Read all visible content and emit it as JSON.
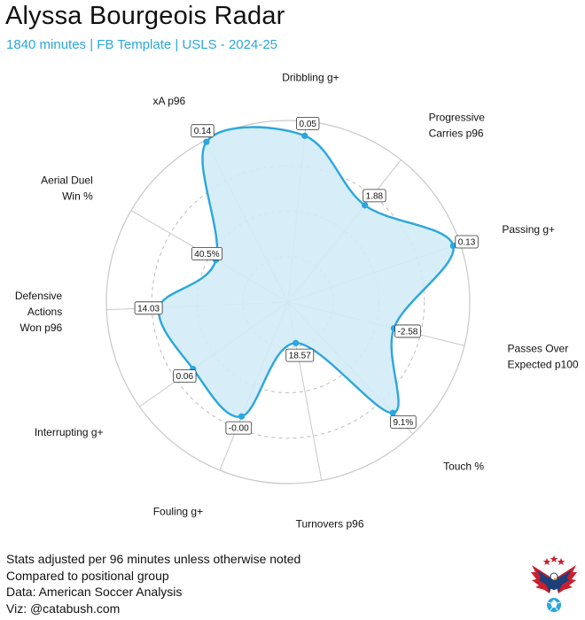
{
  "header": {
    "title": "Alyssa Bourgeois Radar",
    "subtitle": "1840 minutes | FB Template | USLS - 2024-25"
  },
  "footer": {
    "line1": "Stats adjusted per 96 minutes unless otherwise noted",
    "line2": "Compared to positional group",
    "line3": "Data: American Soccer Analysis",
    "line4": "Viz: @catabush.com"
  },
  "colors": {
    "accent": "#2aa7dc",
    "fill": "#d3ebf7",
    "grid": "#cfcfcf"
  },
  "chart_data": {
    "type": "radar",
    "title": "Alyssa Bourgeois Radar",
    "subtitle": "1840 minutes | FB Template | USLS - 2024-25",
    "percentile_range": [
      0,
      100
    ],
    "grid_rings": [
      25,
      50,
      75,
      100
    ],
    "series": [
      {
        "axes": [
          {
            "label": [
              "Dribbling g+"
            ],
            "value_label": "0.05",
            "percentile": 92
          },
          {
            "label": [
              "Progressive",
              "Carries p96"
            ],
            "value_label": "1.88",
            "percentile": 68
          },
          {
            "label": [
              "Passing g+"
            ],
            "value_label": "0.13",
            "percentile": 96
          },
          {
            "label": [
              "Passes Over",
              "Expected p100"
            ],
            "value_label": "-2.58",
            "percentile": 60
          },
          {
            "label": [
              "Touch %"
            ],
            "value_label": "9.1%",
            "percentile": 84
          },
          {
            "label": [
              "Turnovers p96"
            ],
            "value_label": "18.57",
            "percentile": 23
          },
          {
            "label": [
              "Fouling g+"
            ],
            "value_label": "-0.00",
            "percentile": 68
          },
          {
            "label": [
              "Interrupting g+"
            ],
            "value_label": "0.06",
            "percentile": 64
          },
          {
            "label": [
              "Defensive",
              "Actions",
              "Won p96"
            ],
            "value_label": "14.03",
            "percentile": 71
          },
          {
            "label": [
              "Aerial Duel",
              "Win %"
            ],
            "value_label": "40.5%",
            "percentile": 46
          },
          {
            "label": [
              "xA p96"
            ],
            "value_label": "0.14",
            "percentile": 99
          }
        ]
      }
    ]
  }
}
